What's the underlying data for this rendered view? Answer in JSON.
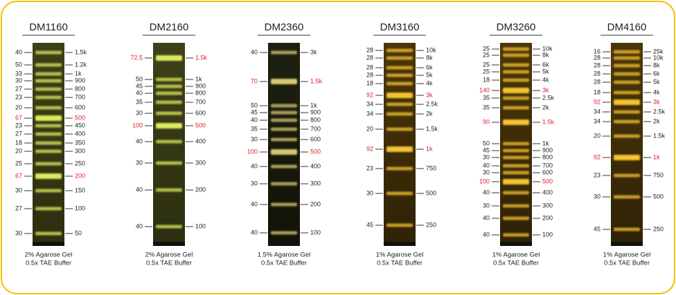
{
  "ladders": [
    {
      "title": "DM1160",
      "theme": "green",
      "footer": [
        "2% Agarose Gel",
        "0.5x TAE Buffer"
      ],
      "bands": [
        {
          "left": "40",
          "right": "1.5k"
        },
        {
          "left": "50",
          "right": "1.2k"
        },
        {
          "left": "33",
          "right": "1k"
        },
        {
          "left": "30",
          "right": "900"
        },
        {
          "left": "27",
          "right": "800"
        },
        {
          "left": "23",
          "right": "700"
        },
        {
          "left": "20",
          "right": "600"
        },
        {
          "left": "67",
          "right": "500",
          "color": "#e0202a"
        },
        {
          "left": "23",
          "right": "450"
        },
        {
          "left": "27",
          "right": "400"
        },
        {
          "left": "18",
          "right": "350"
        },
        {
          "left": "20",
          "right": "300"
        },
        {
          "left": "25",
          "right": "250"
        },
        {
          "left": "67",
          "right": "200",
          "color": "#e0202a"
        },
        {
          "left": "30",
          "right": "150"
        },
        {
          "left": "27",
          "right": "100"
        },
        {
          "left": "30",
          "right": "50"
        }
      ]
    },
    {
      "title": "DM2160",
      "theme": "green",
      "footer": [
        "2% Agarose Gel",
        "0.5x TAE Buffer"
      ],
      "bands": [
        {
          "left": "72.5",
          "right": "1.5k",
          "color": "#e0202a"
        },
        {
          "left": "50",
          "right": "1k"
        },
        {
          "left": "45",
          "right": "900"
        },
        {
          "left": "40",
          "right": "800"
        },
        {
          "left": "35",
          "right": "700"
        },
        {
          "left": "30",
          "right": "600"
        },
        {
          "left": "100",
          "right": "500",
          "color": "#e0202a"
        },
        {
          "left": "40",
          "right": "400"
        },
        {
          "left": "30",
          "right": "300"
        },
        {
          "left": "40",
          "right": "200"
        },
        {
          "left": "40",
          "right": "100"
        }
      ]
    },
    {
      "title": "DM2360",
      "theme": "dark",
      "footer": [
        "1.5% Agarose Gel",
        "0.5x TAE Buffer"
      ],
      "bands": [
        {
          "left": "40",
          "right": "3k"
        },
        {
          "left": "70",
          "right": "1.5k",
          "color": "#e0202a"
        },
        {
          "left": "50",
          "right": "1k"
        },
        {
          "left": "45",
          "right": "900"
        },
        {
          "left": "40",
          "right": "800"
        },
        {
          "left": "35",
          "right": "700"
        },
        {
          "left": "30",
          "right": "600"
        },
        {
          "left": "100",
          "right": "500",
          "color": "#e0202a"
        },
        {
          "left": "40",
          "right": "400"
        },
        {
          "left": "30",
          "right": "300"
        },
        {
          "left": "40",
          "right": "200"
        },
        {
          "left": "40",
          "right": "100"
        }
      ]
    },
    {
      "title": "DM3160",
      "theme": "gold",
      "footer": [
        "1% Agarose Gel",
        "0.5x TAE Buffer"
      ],
      "bands": [
        {
          "left": "28",
          "right": "10k"
        },
        {
          "left": "28",
          "right": "8k"
        },
        {
          "left": "28",
          "right": "6k"
        },
        {
          "left": "28",
          "right": "5k"
        },
        {
          "left": "18",
          "right": "4k"
        },
        {
          "left": "92",
          "right": "3k",
          "color": "#e0202a"
        },
        {
          "left": "34",
          "right": "2.5k"
        },
        {
          "left": "34",
          "right": "2k"
        },
        {
          "left": "20",
          "right": "1.5k"
        },
        {
          "left": "92",
          "right": "1k",
          "color": "#e0202a"
        },
        {
          "left": "23",
          "right": "750"
        },
        {
          "left": "30",
          "right": "500"
        },
        {
          "left": "45",
          "right": "250"
        }
      ]
    },
    {
      "title": "DM3260",
      "theme": "gold",
      "footer": [
        "1% Agarose Gel",
        "0.5x TAE Buffer"
      ],
      "bands": [
        {
          "left": "25",
          "right": "10k"
        },
        {
          "left": "25",
          "right": "8k"
        },
        {
          "left": "25",
          "right": "6k"
        },
        {
          "left": "25",
          "right": "5k"
        },
        {
          "left": "18",
          "right": "4k"
        },
        {
          "left": "140",
          "right": "3k",
          "color": "#e0202a"
        },
        {
          "left": "35",
          "right": "2.5k"
        },
        {
          "left": "35",
          "right": "2k"
        },
        {
          "left": "90",
          "right": "1.5k",
          "color": "#e0202a"
        },
        {
          "left": "50",
          "right": "1k"
        },
        {
          "left": "45",
          "right": "900"
        },
        {
          "left": "30",
          "right": "800"
        },
        {
          "left": "40",
          "right": "700"
        },
        {
          "left": "30",
          "right": "600"
        },
        {
          "left": "100",
          "right": "500",
          "color": "#e0202a"
        },
        {
          "left": "40",
          "right": "400"
        },
        {
          "left": "30",
          "right": "300"
        },
        {
          "left": "40",
          "right": "200"
        },
        {
          "left": "40",
          "right": "100"
        }
      ]
    },
    {
      "title": "DM4160",
      "theme": "gold",
      "footer": [
        "1% Agarose Gel",
        "0.5x TAE Buffer"
      ],
      "bands": [
        {
          "left": "16",
          "right": "25k"
        },
        {
          "left": "28",
          "right": "10k"
        },
        {
          "left": "28",
          "right": "8k"
        },
        {
          "left": "28",
          "right": "6k"
        },
        {
          "left": "28",
          "right": "5k"
        },
        {
          "left": "18",
          "right": "4k"
        },
        {
          "left": "92",
          "right": "3k",
          "color": "#e0202a"
        },
        {
          "left": "34",
          "right": "2.5k"
        },
        {
          "left": "34",
          "right": "2k"
        },
        {
          "left": "20",
          "right": "1.5k"
        },
        {
          "left": "92",
          "right": "1k",
          "color": "#e0202a"
        },
        {
          "left": "23",
          "right": "750"
        },
        {
          "left": "30",
          "right": "500"
        },
        {
          "left": "45",
          "right": "250"
        }
      ]
    }
  ]
}
